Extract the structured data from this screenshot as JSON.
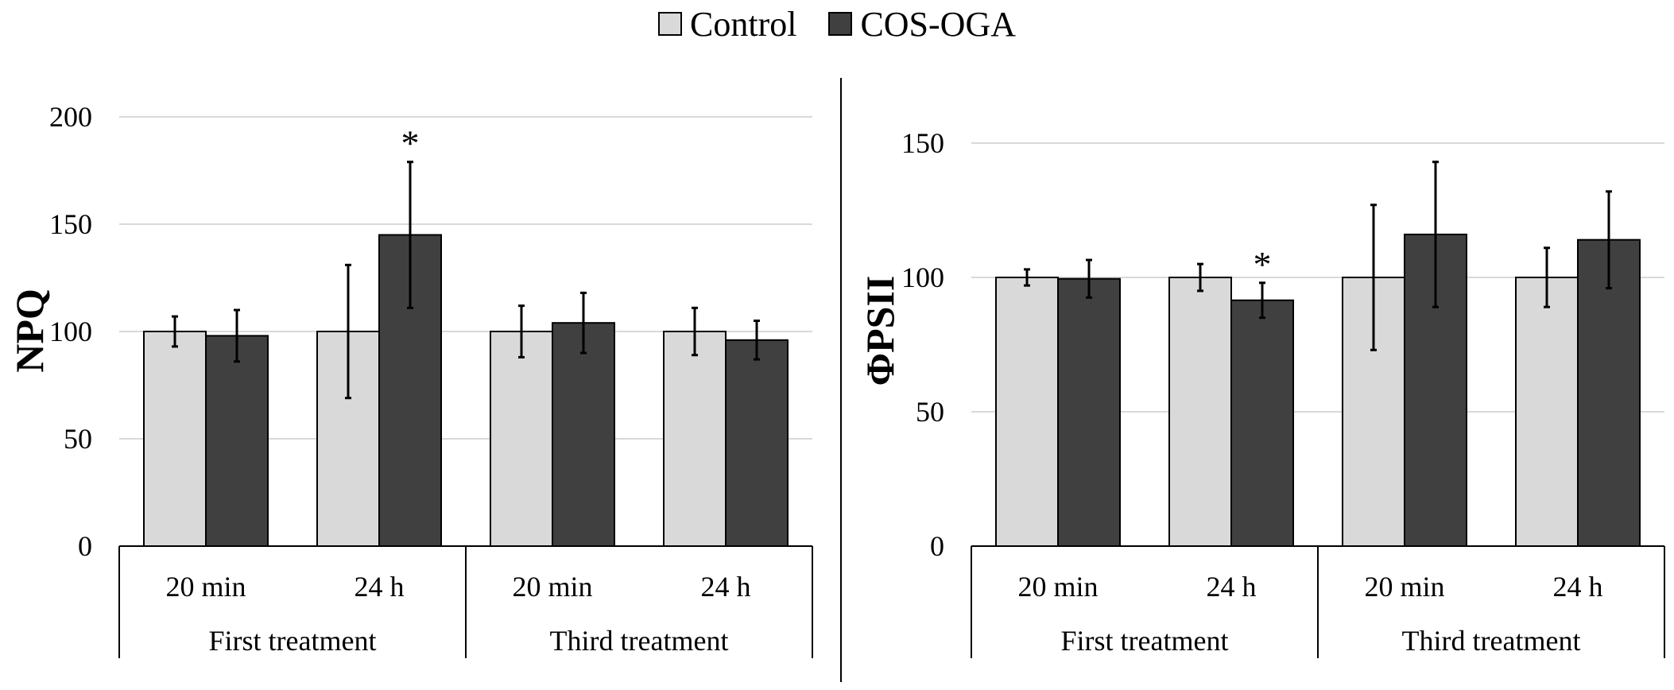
{
  "legend": [
    {
      "label": "Control",
      "color": "#d9d9d9"
    },
    {
      "label": "COS-OGA",
      "color": "#404040"
    }
  ],
  "chart_data": [
    {
      "type": "bar",
      "ylabel": "NPQ",
      "ylim": [
        0,
        200
      ],
      "yticks": [
        0,
        50,
        100,
        150,
        200
      ],
      "grid": true,
      "groups": [
        "First treatment",
        "Third treatment"
      ],
      "categories": [
        "20 min",
        "24 h",
        "20 min",
        "24 h"
      ],
      "series": [
        {
          "name": "Control",
          "values": [
            100,
            100,
            100,
            100
          ],
          "errors": [
            7,
            31,
            12,
            11
          ]
        },
        {
          "name": "COS-OGA",
          "values": [
            98,
            145,
            104,
            96
          ],
          "errors": [
            12,
            34,
            14,
            9
          ]
        }
      ],
      "annotations": [
        {
          "category_index": 1,
          "series": "COS-OGA",
          "text": "*"
        }
      ]
    },
    {
      "type": "bar",
      "ylabel": "ΦPSII",
      "ylim": [
        0,
        150
      ],
      "yticks": [
        0,
        50,
        100,
        150
      ],
      "grid": true,
      "groups": [
        "First treatment",
        "Third treatment"
      ],
      "categories": [
        "20 min",
        "24 h",
        "20 min",
        "24 h"
      ],
      "series": [
        {
          "name": "Control",
          "values": [
            100,
            100,
            100,
            100
          ],
          "errors": [
            3,
            5,
            27,
            11
          ]
        },
        {
          "name": "COS-OGA",
          "values": [
            99.5,
            91.5,
            116,
            114
          ],
          "errors": [
            7,
            6.5,
            27,
            18
          ]
        }
      ],
      "annotations": [
        {
          "category_index": 1,
          "series": "COS-OGA",
          "text": "*"
        }
      ]
    }
  ]
}
